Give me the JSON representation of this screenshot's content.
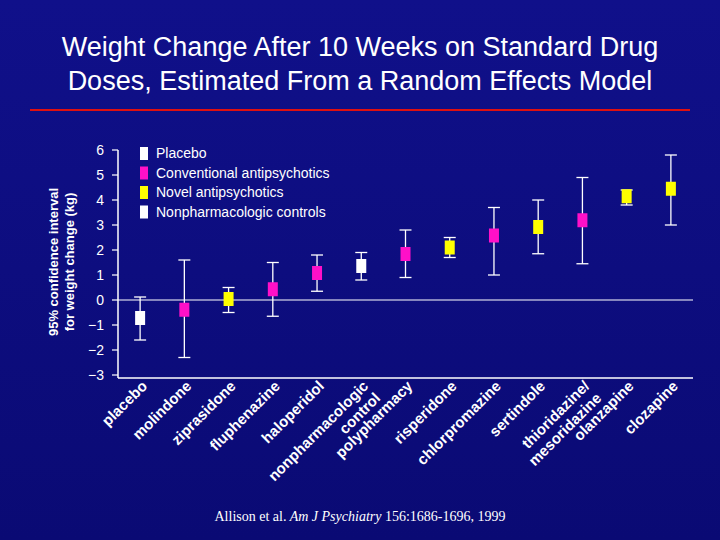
{
  "chart_data": {
    "type": "scatter",
    "title": "Weight Change After 10 Weeks on Standard Drug\nDoses, Estimated From a Random Effects Model",
    "y_label": "95% confidence interval\nfor weight change (kg)",
    "categories": [
      "placebo",
      "molindone",
      "ziprasidone",
      "fluphenazine",
      "haloperidol",
      "nonpharmacologic\ncontrol",
      "polypharmacy",
      "risperidone",
      "chlorpromazine",
      "sertindole",
      "thioridazine/\nmesoridazine",
      "olanzapine",
      "clozapine"
    ],
    "ylim": [
      -3,
      6
    ],
    "yticks": [
      {
        "value": -3,
        "label": "−3"
      },
      {
        "value": -2,
        "label": "−2"
      },
      {
        "value": -1,
        "label": "−1"
      },
      0,
      1,
      2,
      3,
      4,
      5,
      6
    ],
    "grid": false,
    "legend": "top-left",
    "marker": "square",
    "series": [
      {
        "name": "Placebo",
        "color": "#ffffff",
        "values": [
          -0.72,
          null,
          null,
          null,
          null,
          null,
          null,
          null,
          null,
          null,
          null,
          null,
          null
        ],
        "ci_low": [
          -1.6,
          null,
          null,
          null,
          null,
          null,
          null,
          null,
          null,
          null,
          null,
          null,
          null
        ],
        "ci_high": [
          0.12,
          null,
          null,
          null,
          null,
          null,
          null,
          null,
          null,
          null,
          null,
          null,
          null
        ]
      },
      {
        "name": "Conventional antipsychotics",
        "color": "#ff10c8",
        "values": [
          null,
          -0.39,
          null,
          0.43,
          1.08,
          null,
          1.84,
          null,
          2.58,
          null,
          3.19,
          null,
          null
        ],
        "ci_low": [
          null,
          -2.3,
          null,
          -0.65,
          0.35,
          null,
          0.9,
          null,
          1.0,
          null,
          1.45,
          null,
          null
        ],
        "ci_high": [
          null,
          1.6,
          null,
          1.5,
          1.8,
          null,
          2.8,
          null,
          3.7,
          null,
          4.9,
          null,
          null
        ]
      },
      {
        "name": "Novel antipsychotics",
        "color": "#ffff00",
        "values": [
          null,
          null,
          0.04,
          null,
          null,
          null,
          null,
          2.1,
          null,
          2.92,
          null,
          4.15,
          4.45
        ],
        "ci_low": [
          null,
          null,
          -0.5,
          null,
          null,
          null,
          null,
          1.7,
          null,
          1.85,
          null,
          3.8,
          3.0
        ],
        "ci_high": [
          null,
          null,
          0.5,
          null,
          null,
          null,
          null,
          2.5,
          null,
          4.0,
          null,
          4.4,
          5.8
        ]
      },
      {
        "name": "Nonpharmacologic controls",
        "color": "#ffffff",
        "values": [
          null,
          null,
          null,
          null,
          null,
          1.36,
          null,
          null,
          null,
          null,
          null,
          null,
          null
        ],
        "ci_low": [
          null,
          null,
          null,
          null,
          null,
          0.8,
          null,
          null,
          null,
          null,
          null,
          null,
          null
        ],
        "ci_high": [
          null,
          null,
          null,
          null,
          null,
          1.9,
          null,
          null,
          null,
          null,
          null,
          null,
          null
        ]
      }
    ],
    "source": [
      "Allison et al.",
      "Am J Psychiatry",
      "156:1686-1696, 1999"
    ]
  }
}
